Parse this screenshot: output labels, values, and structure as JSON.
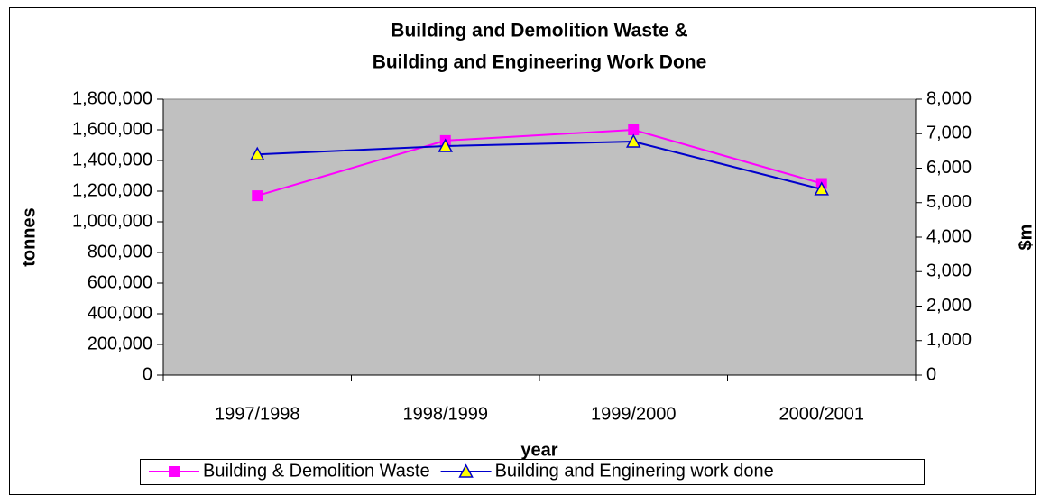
{
  "chart_data": {
    "type": "line",
    "title": [
      "Building and Demolition Waste &",
      "Building and Engineering Work Done"
    ],
    "xlabel": "year",
    "ylabel": "tonnes",
    "y2label": "$m",
    "categories": [
      "1997/1998",
      "1998/1999",
      "1999/2000",
      "2000/2001"
    ],
    "series": [
      {
        "name": "Building & Demolition Waste",
        "color": "#ff00ff",
        "marker": "square",
        "values": [
          1170000,
          1530000,
          1600000,
          1250000
        ]
      },
      {
        "name": "Building and Enginering work done",
        "color": "#0000cc",
        "marker": "triangle",
        "marker_fill": "#ffff00",
        "axis": "y2",
        "values": [
          6400,
          6640,
          6770,
          5390
        ]
      }
    ],
    "ylim": [
      0,
      1800000
    ],
    "yticks": [
      0,
      {
        "value": 200000,
        "label": "200,000"
      },
      {
        "value": 400000,
        "label": "400,000"
      },
      {
        "value": 600000,
        "label": "600,000"
      },
      {
        "value": 800000,
        "label": "800,000"
      },
      {
        "value": 1000000,
        "label": "1,000,000"
      },
      {
        "value": 1200000,
        "label": "1,200,000"
      },
      {
        "value": 1400000,
        "label": "1,400,000"
      },
      {
        "value": 1600000,
        "label": "1,600,000"
      },
      {
        "value": 1800000,
        "label": "1,800,000"
      }
    ],
    "y2lim": [
      0,
      8000
    ],
    "y2ticks": [
      0,
      {
        "value": 1000,
        "label": "1,000"
      },
      {
        "value": 2000,
        "label": "2,000"
      },
      {
        "value": 3000,
        "label": "3,000"
      },
      {
        "value": 4000,
        "label": "4,000"
      },
      {
        "value": 5000,
        "label": "5,000"
      },
      {
        "value": 6000,
        "label": "6,000"
      },
      {
        "value": 7000,
        "label": "7,000"
      },
      {
        "value": 8000,
        "label": "8,000"
      }
    ],
    "plot_background": "#c0c0c0",
    "legend": "bottom"
  }
}
